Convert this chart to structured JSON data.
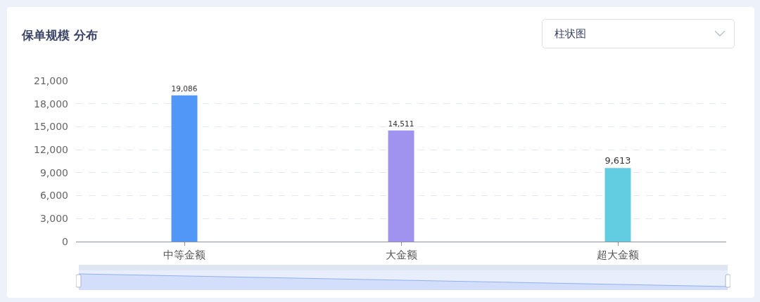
{
  "chart_data": {
    "type": "bar",
    "title": "保单规模 分布",
    "categories": [
      "中等金额",
      "大金额",
      "超大金额"
    ],
    "values": [
      19086,
      14511,
      9613
    ],
    "value_labels": [
      "19,086",
      "14,511",
      "9,613"
    ],
    "colors": [
      "#5097f7",
      "#a093f0",
      "#62cce0"
    ],
    "ylim": [
      0,
      21000
    ],
    "yticks": [
      0,
      {
        "value": 3000,
        "label": "3,000"
      },
      {
        "value": 6000,
        "label": "6,000"
      },
      {
        "value": 9000,
        "label": "9,000"
      },
      {
        "value": 12000,
        "label": "12,000"
      },
      {
        "value": 15000,
        "label": "15,000"
      },
      {
        "value": 18000,
        "label": "18,000"
      },
      {
        "value": 21000,
        "label": "21,000"
      }
    ],
    "grid": "y",
    "annotations": [
      "柱状图"
    ]
  }
}
